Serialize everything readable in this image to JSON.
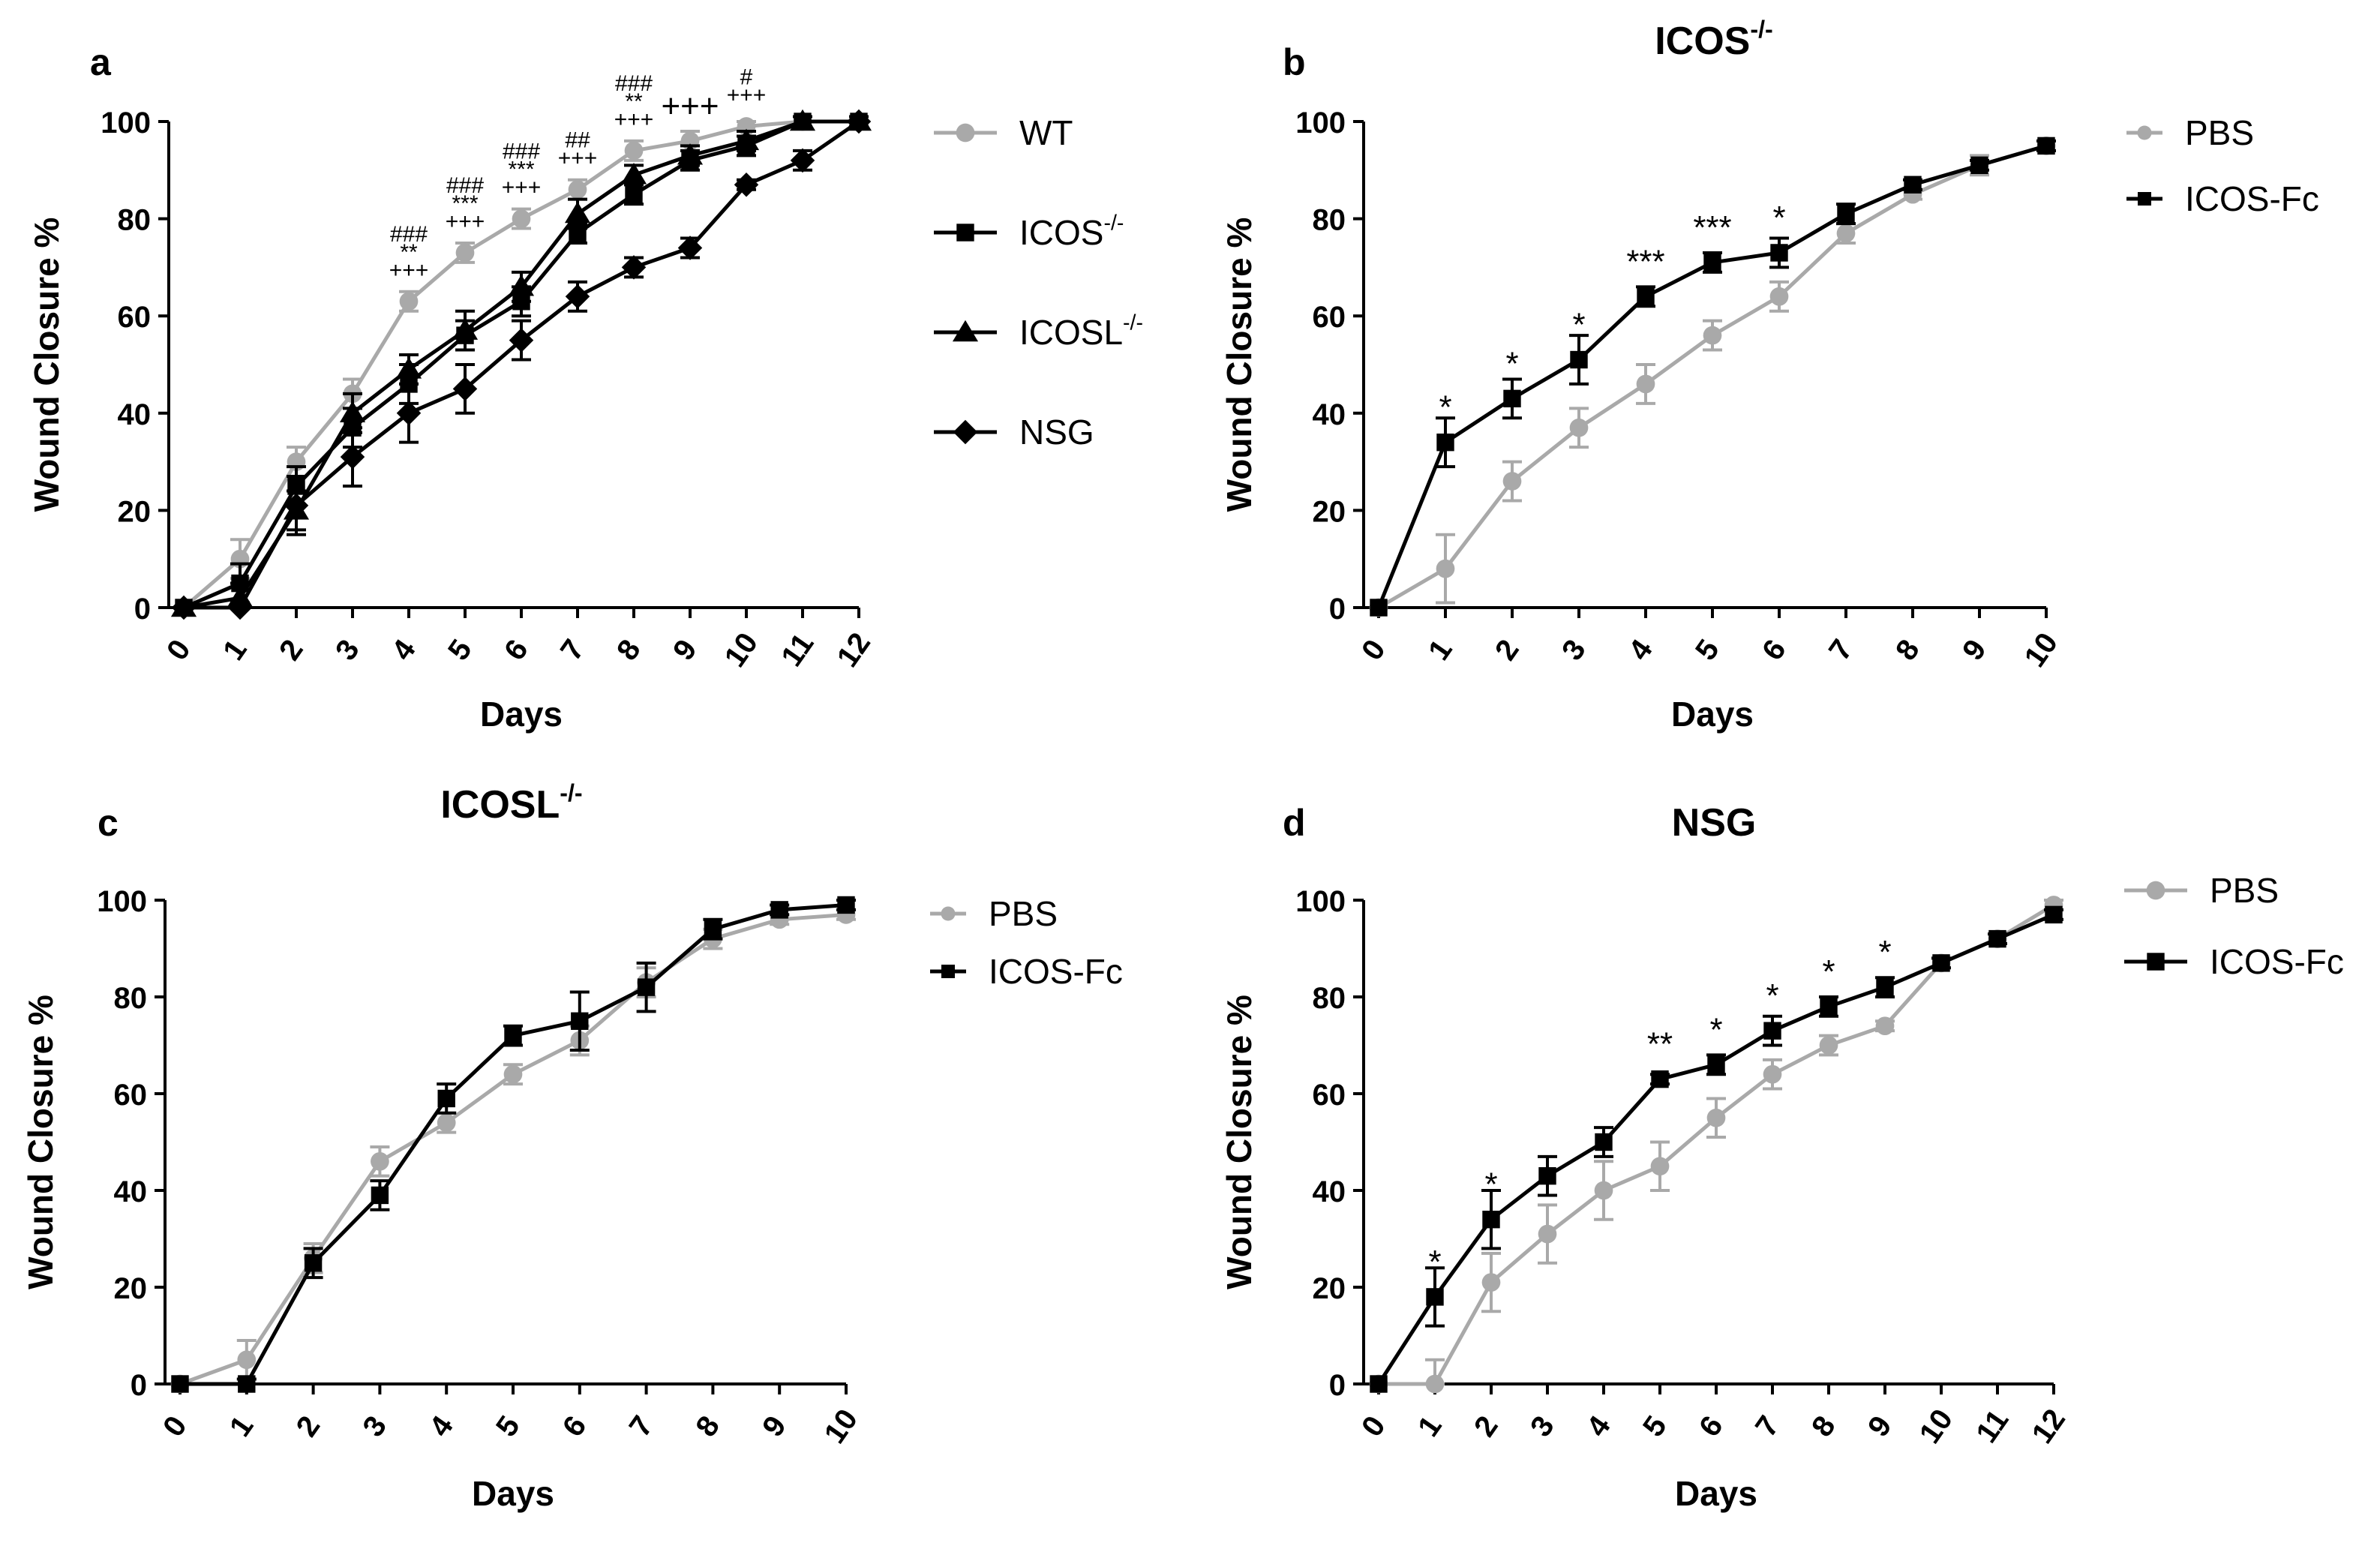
{
  "colors": {
    "black": "#000000",
    "gray": "#a9a9a9",
    "axis": "#000000"
  },
  "chart_data": [
    {
      "id": "a",
      "type": "line",
      "panel_letter": "a",
      "title": "",
      "title_sup": "",
      "xlabel": "Days",
      "ylabel": "Wound Closure %",
      "xlim": [
        0,
        12
      ],
      "ylim": [
        0,
        100
      ],
      "xticks": [
        "0",
        "1",
        "2",
        "3",
        "4",
        "5",
        "6",
        "7",
        "8",
        "9",
        "10",
        "11",
        "12"
      ],
      "yticks": [
        "0",
        "20",
        "40",
        "60",
        "80",
        "100"
      ],
      "series": [
        {
          "name": "WT",
          "sup": "",
          "color": "gray",
          "marker": "circle",
          "x": [
            0,
            1,
            2,
            3,
            4,
            5,
            6,
            7,
            8,
            9,
            10,
            11,
            12
          ],
          "y": [
            0,
            10,
            30,
            44,
            63,
            73,
            80,
            86,
            94,
            96,
            99,
            100,
            100
          ],
          "err": [
            0,
            4,
            3,
            3,
            2,
            2,
            2,
            2,
            2,
            2,
            1,
            1,
            1
          ]
        },
        {
          "name": "ICOS",
          "sup": "-/-",
          "color": "black",
          "marker": "square",
          "x": [
            0,
            1,
            2,
            3,
            4,
            5,
            6,
            7,
            8,
            9,
            10,
            11,
            12
          ],
          "y": [
            0,
            5,
            25,
            37,
            46,
            56,
            63,
            77,
            85,
            92,
            95,
            100,
            100
          ],
          "err": [
            0,
            4,
            4,
            4,
            4,
            3,
            3,
            2,
            2,
            2,
            2,
            1,
            1
          ]
        },
        {
          "name": "ICOSL",
          "sup": "-/-",
          "color": "black",
          "marker": "triangle",
          "x": [
            0,
            1,
            2,
            3,
            4,
            5,
            6,
            7,
            8,
            9,
            10,
            11,
            12
          ],
          "y": [
            0,
            2,
            20,
            40,
            49,
            57,
            66,
            81,
            89,
            93,
            96,
            100,
            100
          ],
          "err": [
            0,
            3,
            4,
            4,
            3,
            4,
            3,
            3,
            2,
            2,
            2,
            1,
            1
          ]
        },
        {
          "name": "NSG",
          "sup": "",
          "color": "black",
          "marker": "diamond",
          "x": [
            0,
            1,
            2,
            3,
            4,
            5,
            6,
            7,
            8,
            9,
            10,
            11,
            12
          ],
          "y": [
            0,
            0,
            21,
            31,
            40,
            45,
            55,
            64,
            70,
            74,
            87,
            92,
            100
          ],
          "err": [
            0,
            5,
            6,
            6,
            6,
            5,
            4,
            3,
            2,
            2,
            1,
            2,
            1
          ]
        }
      ],
      "annotations": [
        {
          "x": 4,
          "y": 63,
          "lines": [
            "###",
            "**",
            "+++"
          ]
        },
        {
          "x": 5,
          "y": 73,
          "lines": [
            "###",
            "***",
            "+++"
          ]
        },
        {
          "x": 6,
          "y": 80,
          "lines": [
            "###",
            "***",
            "+++"
          ]
        },
        {
          "x": 7,
          "y": 86,
          "lines": [
            "##",
            "+++"
          ]
        },
        {
          "x": 8,
          "y": 94,
          "lines": [
            "###",
            "**",
            "+++"
          ]
        },
        {
          "x": 9,
          "y": 96,
          "lines": [
            "+++"
          ]
        },
        {
          "x": 10,
          "y": 99,
          "lines": [
            "#",
            "+++"
          ]
        }
      ]
    },
    {
      "id": "b",
      "type": "line",
      "panel_letter": "b",
      "title": "ICOS",
      "title_sup": "-/-",
      "xlabel": "Days",
      "ylabel": "Wound Closure %",
      "xlim": [
        0,
        10
      ],
      "ylim": [
        0,
        100
      ],
      "xticks": [
        "0",
        "1",
        "2",
        "3",
        "4",
        "5",
        "6",
        "7",
        "8",
        "9",
        "10"
      ],
      "yticks": [
        "0",
        "20",
        "40",
        "60",
        "80",
        "100"
      ],
      "series": [
        {
          "name": "PBS",
          "sup": "",
          "color": "gray",
          "marker": "circle",
          "x": [
            0,
            1,
            2,
            3,
            4,
            5,
            6,
            7,
            8,
            9,
            10
          ],
          "y": [
            0,
            8,
            26,
            37,
            46,
            56,
            64,
            77,
            85,
            91,
            95
          ],
          "err": [
            0,
            7,
            4,
            4,
            4,
            3,
            3,
            2,
            1,
            2,
            1
          ]
        },
        {
          "name": "ICOS-Fc",
          "sup": "",
          "color": "black",
          "marker": "square",
          "x": [
            0,
            1,
            2,
            3,
            4,
            5,
            6,
            7,
            8,
            9,
            10
          ],
          "y": [
            0,
            34,
            43,
            51,
            64,
            71,
            73,
            81,
            87,
            91,
            95
          ],
          "err": [
            0,
            5,
            4,
            5,
            2,
            2,
            3,
            2,
            1,
            1,
            1
          ]
        }
      ],
      "annotations": [
        {
          "x": 1,
          "y": 34,
          "lines": [
            "*"
          ]
        },
        {
          "x": 2,
          "y": 43,
          "lines": [
            "*"
          ]
        },
        {
          "x": 3,
          "y": 51,
          "lines": [
            "*"
          ]
        },
        {
          "x": 4,
          "y": 64,
          "lines": [
            "***"
          ]
        },
        {
          "x": 5,
          "y": 71,
          "lines": [
            "***"
          ]
        },
        {
          "x": 6,
          "y": 73,
          "lines": [
            "*"
          ]
        }
      ]
    },
    {
      "id": "c",
      "type": "line",
      "panel_letter": "c",
      "title": "ICOSL",
      "title_sup": "-/-",
      "xlabel": "Days",
      "ylabel": "Wound Closure %",
      "xlim": [
        0,
        10
      ],
      "ylim": [
        0,
        100
      ],
      "xticks": [
        "0",
        "1",
        "2",
        "3",
        "4",
        "5",
        "6",
        "7",
        "8",
        "9",
        "10"
      ],
      "yticks": [
        "0",
        "20",
        "40",
        "60",
        "80",
        "100"
      ],
      "series": [
        {
          "name": "PBS",
          "sup": "",
          "color": "gray",
          "marker": "circle",
          "x": [
            0,
            1,
            2,
            3,
            4,
            5,
            6,
            7,
            8,
            9,
            10
          ],
          "y": [
            0,
            5,
            26,
            46,
            54,
            64,
            71,
            83,
            92,
            96,
            97
          ],
          "err": [
            0,
            4,
            3,
            3,
            2,
            2,
            3,
            3,
            2,
            1,
            1
          ]
        },
        {
          "name": "ICOS-Fc",
          "sup": "",
          "color": "black",
          "marker": "square",
          "x": [
            0,
            1,
            2,
            3,
            4,
            5,
            6,
            7,
            8,
            9,
            10
          ],
          "y": [
            0,
            0,
            25,
            39,
            59,
            72,
            75,
            82,
            94,
            98,
            99
          ],
          "err": [
            0,
            1,
            3,
            3,
            3,
            2,
            6,
            5,
            2,
            1,
            1
          ]
        }
      ],
      "annotations": []
    },
    {
      "id": "d",
      "type": "line",
      "panel_letter": "d",
      "title": "NSG",
      "title_sup": "",
      "xlabel": "Days",
      "ylabel": "Wound Closure %",
      "xlim": [
        0,
        12
      ],
      "ylim": [
        0,
        100
      ],
      "xticks": [
        "0",
        "1",
        "2",
        "3",
        "4",
        "5",
        "6",
        "7",
        "8",
        "9",
        "10",
        "11",
        "12"
      ],
      "yticks": [
        "0",
        "20",
        "40",
        "60",
        "80",
        "100"
      ],
      "series": [
        {
          "name": "PBS",
          "sup": "",
          "color": "gray",
          "marker": "circle",
          "x": [
            0,
            1,
            2,
            3,
            4,
            5,
            6,
            7,
            8,
            9,
            10,
            11,
            12
          ],
          "y": [
            0,
            0,
            21,
            31,
            40,
            45,
            55,
            64,
            70,
            74,
            87,
            92,
            99
          ],
          "err": [
            0,
            5,
            6,
            6,
            6,
            5,
            4,
            3,
            2,
            1,
            1,
            1,
            1
          ]
        },
        {
          "name": "ICOS-Fc",
          "sup": "",
          "color": "black",
          "marker": "square",
          "x": [
            0,
            1,
            2,
            3,
            4,
            5,
            6,
            7,
            8,
            9,
            10,
            11,
            12
          ],
          "y": [
            0,
            18,
            34,
            43,
            50,
            63,
            66,
            73,
            78,
            82,
            87,
            92,
            97
          ],
          "err": [
            0,
            6,
            6,
            4,
            3,
            1,
            2,
            3,
            2,
            2,
            1,
            1,
            1
          ]
        }
      ],
      "annotations": [
        {
          "x": 1,
          "y": 18,
          "lines": [
            "*"
          ]
        },
        {
          "x": 2,
          "y": 34,
          "lines": [
            "*"
          ]
        },
        {
          "x": 5,
          "y": 63,
          "lines": [
            "**"
          ]
        },
        {
          "x": 6,
          "y": 66,
          "lines": [
            "*"
          ]
        },
        {
          "x": 7,
          "y": 73,
          "lines": [
            "*"
          ]
        },
        {
          "x": 8,
          "y": 78,
          "lines": [
            "*"
          ]
        },
        {
          "x": 9,
          "y": 82,
          "lines": [
            "*"
          ]
        }
      ]
    }
  ]
}
